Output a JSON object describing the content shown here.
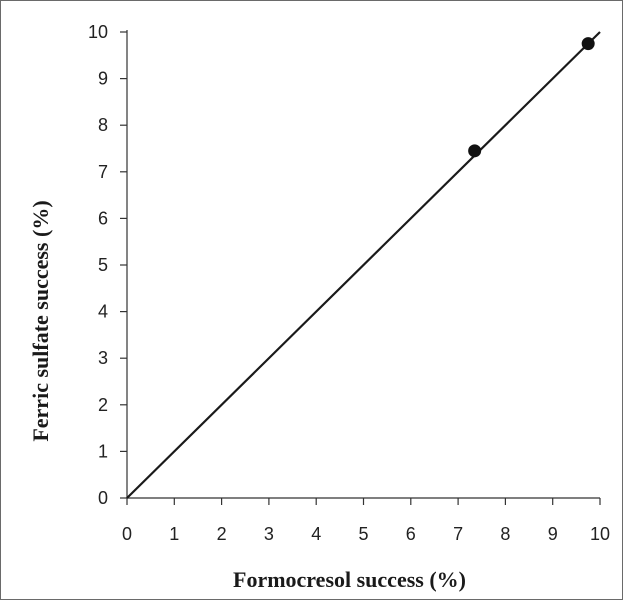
{
  "chart_data": {
    "type": "scatter",
    "title": "",
    "xlabel": "Formocresol success (%)",
    "ylabel": "Ferric sulfate success (%)",
    "xlim": [
      0,
      10
    ],
    "ylim": [
      0,
      10
    ],
    "x_ticks": [
      "0",
      "1",
      "2",
      "3",
      "4",
      "5",
      "6",
      "7",
      "8",
      "9",
      "10"
    ],
    "y_ticks": [
      "0",
      "1",
      "2",
      "3",
      "4",
      "5",
      "6",
      "7",
      "8",
      "9",
      "10"
    ],
    "grid": false,
    "series": [
      {
        "points": [
          {
            "x": 7.35,
            "y": 7.45
          },
          {
            "x": 9.75,
            "y": 9.75
          }
        ]
      }
    ],
    "reference_line": {
      "x": [
        0,
        10
      ],
      "y": [
        0,
        10
      ]
    },
    "colors": {
      "axis": "#333333",
      "marker": "#111111",
      "line": "#1a1a1a"
    }
  }
}
